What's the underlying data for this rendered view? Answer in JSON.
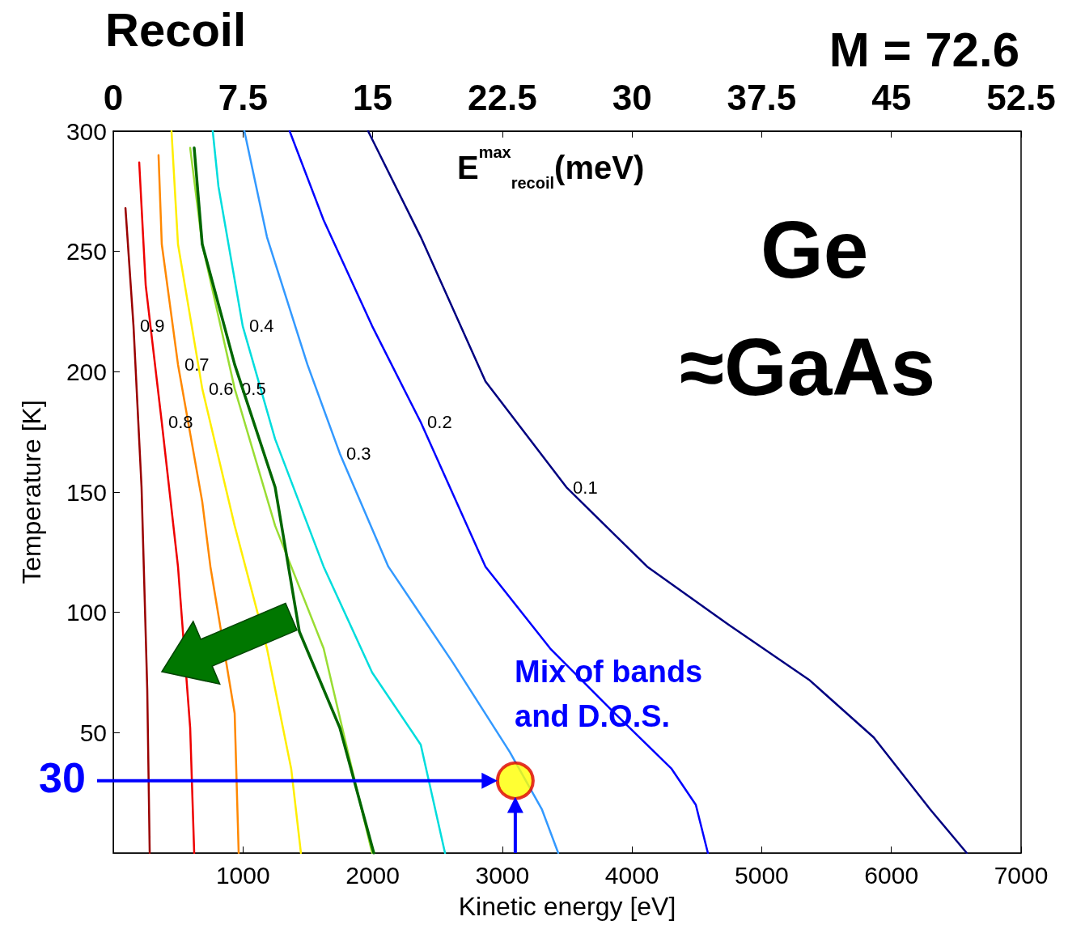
{
  "chart_data": {
    "type": "line",
    "title": "Recoil",
    "xlabel": "Kinetic energy [eV]",
    "ylabel": "Temperature [K]",
    "xlim": [
      0,
      7000
    ],
    "xticks": [
      1000,
      2000,
      3000,
      4000,
      5000,
      6000,
      7000
    ],
    "x2lim": [
      0,
      52.5
    ],
    "x2ticks": [
      0,
      7.5,
      15,
      22.5,
      30,
      37.5,
      45,
      52.5
    ],
    "ylim": [
      0,
      300
    ],
    "yticks": [
      50,
      100,
      150,
      200,
      250,
      300
    ],
    "grid": false,
    "legend": false,
    "line_style": "solid",
    "series": [
      {
        "name": "0.1",
        "color": "#000080",
        "x": [
          1965,
          2371,
          2870,
          3494,
          4117,
          4741,
          5365,
          5864,
          6301,
          6581
        ],
        "values": [
          300,
          256,
          196,
          152,
          119,
          95,
          72,
          48,
          18,
          0
        ]
      },
      {
        "name": "0.2",
        "color": "#0000ff",
        "x": [
          1360,
          1622,
          1996,
          2371,
          2870,
          3369,
          3868,
          4305,
          4492,
          4585
        ],
        "values": [
          300,
          263,
          219,
          179,
          119,
          85,
          58,
          35,
          20,
          0
        ]
      },
      {
        "name": "0.3",
        "color": "#3399ff",
        "x": [
          1011,
          1185,
          1497,
          1747,
          2121,
          2620,
          3057,
          3306,
          3431
        ],
        "values": [
          300,
          256,
          203,
          166,
          119,
          79,
          42,
          18,
          0
        ]
      },
      {
        "name": "0.4",
        "color": "#00dddd",
        "x": [
          767,
          811,
          998,
          1248,
          1622,
          1996,
          2371,
          2558
        ],
        "values": [
          300,
          277,
          219,
          172,
          119,
          75,
          45,
          0
        ]
      },
      {
        "name": "0.5",
        "color": "#99dd33",
        "x": [
          593,
          686,
          936,
          1248,
          1622,
          1809,
          1996
        ],
        "values": [
          293,
          253,
          193,
          136,
          85,
          42,
          0
        ]
      },
      {
        "name": "0.6",
        "color": "#ffee00",
        "x": [
          449,
          499,
          686,
          936,
          1185,
          1372,
          1447
        ],
        "values": [
          300,
          253,
          193,
          136,
          85,
          35,
          0
        ]
      },
      {
        "name": "0.7",
        "color": "#ff8800",
        "x": [
          349,
          374,
          499,
          686,
          749,
          936,
          967
        ],
        "values": [
          290,
          253,
          203,
          146,
          119,
          58,
          0
        ]
      },
      {
        "name": "0.8",
        "color": "#ee0000",
        "x": [
          200,
          250,
          374,
          499,
          593,
          624
        ],
        "values": [
          287,
          236,
          179,
          119,
          52,
          0
        ]
      },
      {
        "name": "0.9",
        "color": "#990000",
        "x": [
          94,
          156,
          218,
          262,
          281
        ],
        "values": [
          268,
          219,
          152,
          68,
          0
        ]
      },
      {
        "color": "#006600",
        "x": [
          624,
          686,
          936,
          1248,
          1435,
          1747,
          2009
        ],
        "values": [
          293,
          253,
          203,
          152,
          92,
          52,
          0
        ]
      },
      {
        "type": "scatter",
        "color": "#ffff00",
        "x": [
          3100
        ],
        "values": [
          30
        ]
      }
    ],
    "annotations": [
      "M = 72.6",
      "E$^{max}$$_{recoil}$(meV)",
      "Ge",
      "≈GaAs",
      "Mix of bands\nand D.O.S.",
      "30"
    ]
  }
}
